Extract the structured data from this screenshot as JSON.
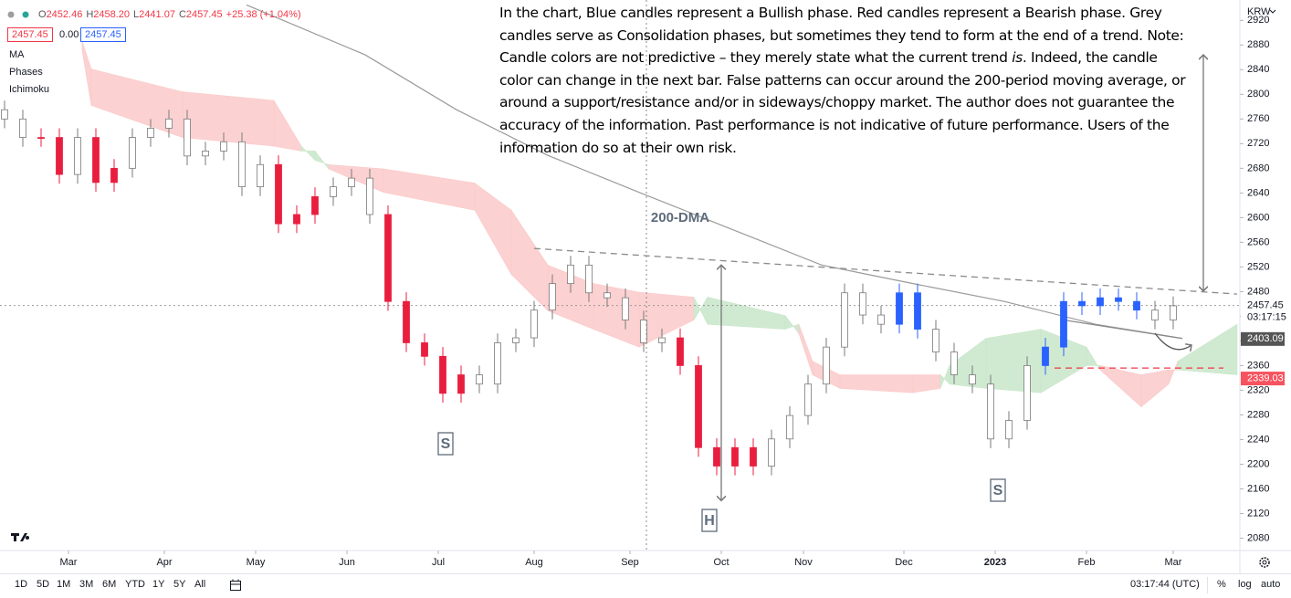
{
  "header": {
    "ohlc": [
      {
        "label": "O",
        "value": "2452.46"
      },
      {
        "label": "H",
        "value": "2458.20"
      },
      {
        "label": "L",
        "value": "2441.07"
      },
      {
        "label": "C",
        "value": "2457.45"
      }
    ],
    "change": "+25.38 (+1.04%)",
    "boxes": [
      "2457.45",
      "0.00",
      "2457.45"
    ],
    "indicators": [
      "MA",
      "Phases",
      "Ichimoku"
    ]
  },
  "currency": "KRW",
  "note": [
    "In the chart, Blue candles represent a Bullish phase. Red candles represent a Bearish phase. Grey candles serve as Consolidation phases, but sometimes they tend to form at the end of a trend. Note: Candle colors are not predictive – they merely state what the current trend ",
    "is",
    ". Indeed, the candle color can change in the next bar. False patterns can occur around the 200-period moving average, or around a support/resistance and/or in sideways/choppy market. The author does not guarantee the accuracy of the information. Past performance is not indicative of future performance. Users of the information do so at their own risk."
  ],
  "chart_data": {
    "type": "candlestick",
    "x": [
      0,
      4,
      8,
      12,
      16,
      20,
      24,
      28,
      32,
      36,
      40,
      44,
      48,
      52,
      56,
      60,
      64,
      68,
      72,
      76,
      80,
      84,
      88,
      92,
      96,
      100,
      104,
      108,
      112,
      116,
      120,
      124,
      128,
      132,
      136,
      140,
      144,
      148,
      152,
      156,
      160,
      164,
      168,
      172,
      176,
      180,
      184,
      188,
      192,
      196,
      200,
      204,
      208,
      212,
      216,
      220,
      224,
      228,
      232,
      236,
      240,
      244,
      248,
      252,
      256
    ],
    "open": [
      2775,
      2760,
      2730,
      2730,
      2670,
      2730,
      2657,
      2680,
      2730,
      2745,
      2760,
      2700,
      2708,
      2723,
      2650,
      2686,
      2590,
      2605,
      2634,
      2650,
      2664,
      2605,
      2464,
      2397,
      2375,
      2315,
      2345,
      2330,
      2397,
      2405,
      2450,
      2493,
      2523,
      2478,
      2470,
      2434,
      2397,
      2405,
      2360,
      2227,
      2197,
      2227,
      2197,
      2241,
      2279,
      2330,
      2390,
      2478,
      2442,
      2427,
      2478,
      2419,
      2382,
      2345,
      2330,
      2241,
      2271,
      2360,
      2390,
      2464,
      2457,
      2470,
      2464,
      2450,
      2434
    ],
    "high": [
      2790,
      2775,
      2745,
      2745,
      2745,
      2745,
      2695,
      2745,
      2760,
      2775,
      2775,
      2723,
      2738,
      2738,
      2701,
      2701,
      2620,
      2649,
      2665,
      2679,
      2679,
      2620,
      2479,
      2412,
      2390,
      2360,
      2360,
      2412,
      2420,
      2465,
      2508,
      2538,
      2538,
      2493,
      2485,
      2449,
      2420,
      2420,
      2375,
      2242,
      2242,
      2242,
      2256,
      2294,
      2345,
      2405,
      2493,
      2493,
      2457,
      2493,
      2493,
      2434,
      2397,
      2360,
      2345,
      2286,
      2375,
      2405,
      2479,
      2479,
      2485,
      2485,
      2479,
      2465,
      2472
    ],
    "low": [
      2745,
      2715,
      2715,
      2655,
      2655,
      2642,
      2642,
      2665,
      2715,
      2730,
      2685,
      2685,
      2693,
      2635,
      2635,
      2575,
      2575,
      2590,
      2619,
      2635,
      2590,
      2449,
      2382,
      2360,
      2300,
      2300,
      2315,
      2315,
      2382,
      2390,
      2435,
      2478,
      2463,
      2455,
      2419,
      2382,
      2382,
      2345,
      2212,
      2182,
      2182,
      2182,
      2182,
      2226,
      2264,
      2315,
      2375,
      2427,
      2412,
      2412,
      2404,
      2367,
      2330,
      2315,
      2226,
      2226,
      2256,
      2345,
      2375,
      2442,
      2442,
      2449,
      2435,
      2419,
      2419
    ],
    "close": [
      2760,
      2730,
      2730,
      2670,
      2730,
      2657,
      2680,
      2730,
      2745,
      2760,
      2700,
      2708,
      2723,
      2650,
      2686,
      2590,
      2605,
      2634,
      2650,
      2664,
      2605,
      2464,
      2397,
      2375,
      2315,
      2345,
      2330,
      2397,
      2405,
      2450,
      2493,
      2523,
      2478,
      2470,
      2434,
      2397,
      2405,
      2360,
      2227,
      2197,
      2227,
      2197,
      2241,
      2279,
      2330,
      2390,
      2478,
      2442,
      2427,
      2478,
      2419,
      2382,
      2345,
      2330,
      2241,
      2271,
      2360,
      2390,
      2464,
      2457,
      2470,
      2464,
      2450,
      2434,
      2457
    ],
    "colors": [
      "#ffffff",
      "#ffffff",
      "#e91e3f",
      "#e91e3f",
      "#ffffff",
      "#e91e3f",
      "#e91e3f",
      "#ffffff",
      "#ffffff",
      "#ffffff",
      "#ffffff",
      "#ffffff",
      "#ffffff",
      "#ffffff",
      "#ffffff",
      "#e91e3f",
      "#e91e3f",
      "#e91e3f",
      "#ffffff",
      "#ffffff",
      "#ffffff",
      "#e91e3f",
      "#e91e3f",
      "#e91e3f",
      "#e91e3f",
      "#e91e3f",
      "#ffffff",
      "#ffffff",
      "#ffffff",
      "#ffffff",
      "#ffffff",
      "#ffffff",
      "#ffffff",
      "#ffffff",
      "#ffffff",
      "#ffffff",
      "#ffffff",
      "#e91e3f",
      "#e91e3f",
      "#e91e3f",
      "#e91e3f",
      "#e91e3f",
      "#ffffff",
      "#ffffff",
      "#ffffff",
      "#ffffff",
      "#ffffff",
      "#ffffff",
      "#ffffff",
      "#2962ff",
      "#2962ff",
      "#ffffff",
      "#ffffff",
      "#ffffff",
      "#ffffff",
      "#ffffff",
      "#ffffff",
      "#2962ff",
      "#2962ff",
      "#2962ff",
      "#2962ff",
      "#2962ff",
      "#2962ff",
      "#ffffff",
      "#ffffff"
    ],
    "xlim": [
      -1,
      270.6
    ],
    "xticks": [
      {
        "value": 14,
        "label": "Mar"
      },
      {
        "value": 35,
        "label": "Apr"
      },
      {
        "value": 55,
        "label": "May"
      },
      {
        "value": 75,
        "label": "Jun"
      },
      {
        "value": 95,
        "label": "Jul"
      },
      {
        "value": 116,
        "label": "Aug"
      },
      {
        "value": 137,
        "label": "Sep"
      },
      {
        "value": 157,
        "label": "Oct"
      },
      {
        "value": 175,
        "label": "Nov"
      },
      {
        "value": 197,
        "label": "Dec"
      },
      {
        "value": 217,
        "label": "2023"
      },
      {
        "value": 237,
        "label": "Feb"
      },
      {
        "value": 256,
        "label": "Mar"
      }
    ],
    "ylim": [
      2060,
      2953
    ],
    "yticks": [
      2080,
      2120,
      2160,
      2200,
      2240,
      2280,
      2320,
      2360,
      2400,
      2440,
      2480,
      2520,
      2560,
      2600,
      2640,
      2680,
      2720,
      2760,
      2800,
      2840,
      2880,
      2920
    ],
    "ma200": {
      "color": "#9a9a9a",
      "x": [
        53,
        79,
        99,
        119,
        139,
        159,
        179,
        189,
        199,
        219,
        239,
        258
      ],
      "values": [
        2945,
        2864,
        2775,
        2701,
        2641,
        2582,
        2523,
        2508,
        2493,
        2464,
        2427,
        2404
      ]
    },
    "ichimoku": {
      "bull_color": "#c8e6c9",
      "bear_color": "#fbc9c9",
      "x": [
        17,
        19,
        39,
        59,
        65,
        68,
        71,
        83,
        103,
        111,
        119,
        129,
        139,
        151,
        154,
        171,
        174,
        177,
        183,
        199,
        205,
        207,
        215,
        227,
        237,
        240,
        249,
        255,
        257,
        270
      ],
      "span_a": [
        2871,
        2782,
        2730,
        2716,
        2708,
        2708,
        2679,
        2641,
        2612,
        2508,
        2449,
        2419,
        2390,
        2434,
        2471,
        2441,
        2412,
        2345,
        2323,
        2316,
        2323,
        2360,
        2404,
        2419,
        2390,
        2353,
        2293,
        2330,
        2367,
        2427
      ],
      "span_b": [
        2886,
        2841,
        2804,
        2790,
        2716,
        2693,
        2686,
        2679,
        2656,
        2612,
        2523,
        2493,
        2479,
        2471,
        2427,
        2419,
        2427,
        2367,
        2345,
        2345,
        2345,
        2330,
        2323,
        2316,
        2360,
        2360,
        2345,
        2353,
        2353,
        2345
      ]
    },
    "trendlines": [
      {
        "x": [
          116,
          270
        ],
        "y": [
          2550,
          2476
        ],
        "color": "#8a8a8a",
        "dash": true
      },
      {
        "x": [
          232,
          258
        ],
        "y": [
          2434,
          2404
        ],
        "color": "#8a8a8a",
        "dash": false
      },
      {
        "x": [
          230,
          267
        ],
        "y": [
          2356,
          2356
        ],
        "color": "#f23645",
        "dash": true
      }
    ],
    "arrows": [
      {
        "x": [
          157,
          157
        ],
        "y": [
          2523,
          2141
        ]
      },
      {
        "x": [
          262.6,
          262.6
        ],
        "y": [
          2864,
          2481
        ]
      }
    ],
    "labels": [
      "S",
      "H",
      "S",
      "200-DMA"
    ],
    "price_labels": [
      {
        "value": 2457.45,
        "sub": "03:17:15",
        "color": "#ffffff"
      },
      {
        "value": 2403.09,
        "color": "#555555"
      },
      {
        "value": 2339.03,
        "color": "#f7525f"
      }
    ]
  },
  "toolbar": {
    "ranges": [
      "1D",
      "5D",
      "1M",
      "3M",
      "6M",
      "YTD",
      "1Y",
      "5Y",
      "All"
    ],
    "time": "03:17:44 (UTC)",
    "options": [
      "%",
      "log",
      "auto"
    ]
  }
}
